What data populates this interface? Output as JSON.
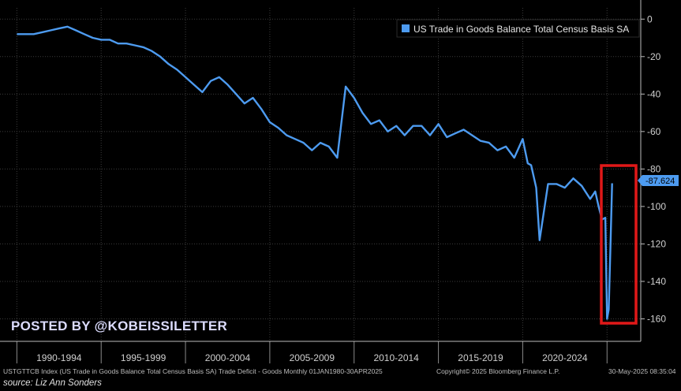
{
  "chart_data": {
    "type": "line",
    "series": [
      {
        "name": "US Trade in Goods Balance Total Census Basis SA",
        "color": "#4d9bf0",
        "x": [
          1990.0,
          1990.5,
          1991.0,
          1991.5,
          1992.0,
          1992.5,
          1993.0,
          1993.5,
          1994.0,
          1994.5,
          1995.0,
          1995.5,
          1996.0,
          1996.5,
          1997.0,
          1997.5,
          1998.0,
          1998.5,
          1999.0,
          1999.5,
          2000.0,
          2000.5,
          2001.0,
          2001.5,
          2002.0,
          2002.5,
          2003.0,
          2003.5,
          2004.0,
          2004.5,
          2005.0,
          2005.5,
          2006.0,
          2006.5,
          2007.0,
          2007.5,
          2008.0,
          2008.5,
          2009.0,
          2009.25,
          2009.5,
          2010.0,
          2010.5,
          2011.0,
          2011.5,
          2012.0,
          2012.5,
          2013.0,
          2013.5,
          2014.0,
          2014.5,
          2015.0,
          2015.5,
          2016.0,
          2016.5,
          2017.0,
          2017.5,
          2018.0,
          2018.5,
          2019.0,
          2019.5,
          2020.0,
          2020.3,
          2020.5,
          2020.8,
          2021.0,
          2021.5,
          2022.0,
          2022.5,
          2023.0,
          2023.5,
          2024.0,
          2024.3,
          2024.5,
          2024.7,
          2024.9,
          2025.0,
          2025.1,
          2025.2,
          2025.3
        ],
        "y": [
          -8,
          -8,
          -8,
          -7,
          -6,
          -5,
          -4,
          -6,
          -8,
          -10,
          -11,
          -11,
          -13,
          -13,
          -14,
          -15,
          -17,
          -20,
          -24,
          -27,
          -31,
          -35,
          -39,
          -33,
          -31,
          -35,
          -40,
          -45,
          -42,
          -48,
          -55,
          -58,
          -62,
          -64,
          -66,
          -70,
          -66,
          -68,
          -74,
          -55,
          -36,
          -42,
          -50,
          -56,
          -54,
          -60,
          -57,
          -62,
          -57,
          -57,
          -62,
          -56,
          -63,
          -61,
          -59,
          -62,
          -65,
          -66,
          -70,
          -68,
          -74,
          -64,
          -77,
          -78,
          -90,
          -118,
          -88,
          -88,
          -90,
          -85,
          -89,
          -96,
          -92,
          -100,
          -107,
          -106,
          -160,
          -155,
          -123,
          -87.624
        ]
      }
    ],
    "x_tick_labels": [
      "1990-1994",
      "1995-1999",
      "2000-2004",
      "2005-2009",
      "2010-2014",
      "2015-2019",
      "2020-2024"
    ],
    "y_ticks": [
      0,
      -20,
      -40,
      -60,
      -80,
      -100,
      -120,
      -140,
      -160
    ],
    "ylim": [
      -172,
      6
    ],
    "xlim": [
      1989.0,
      2027.0
    ],
    "last_value_label": "-87.624",
    "legend_position": "top-right",
    "highlight_color": "#e01818",
    "grid": true,
    "title": "",
    "xlabel": "",
    "ylabel": ""
  },
  "watermark": "POSTED BY @KOBEISSILETTER",
  "footer": {
    "left": "USTGTTCB Index (US Trade in Goods Balance Total Census Basis SA) Trade Deficit - Goods  Monthly 01JAN1980-30APR2025",
    "center": "Copyright© 2025 Bloomberg Finance L.P.",
    "right": "30-May-2025 08:35:04"
  },
  "source": "source: Liz Ann Sonders"
}
